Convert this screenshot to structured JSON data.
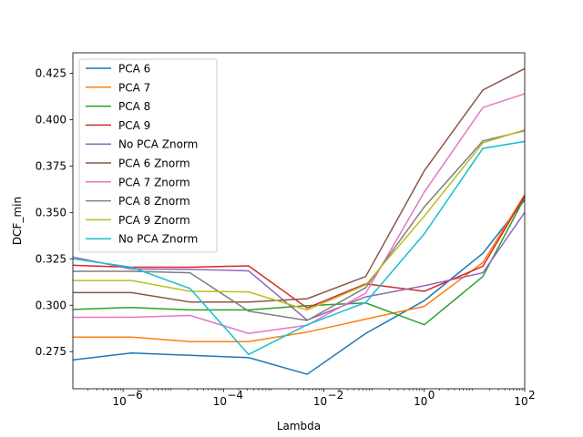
{
  "chart_data": {
    "type": "line",
    "xlabel": "Lambda",
    "ylabel": "DCF_min",
    "xscale": "log",
    "xlim": [
      1e-07,
      100.0
    ],
    "ylim": [
      0.255,
      0.436
    ],
    "x": [
      1e-07,
      1.4678e-06,
      2.1544e-05,
      0.00031623,
      0.0046416,
      0.068129,
      1.0,
      14.678,
      100
    ],
    "x_ticks": [
      1e-06,
      0.0001,
      0.01,
      1.0,
      100.0
    ],
    "x_tick_labels": [
      "10",
      "10",
      "10",
      "10",
      "10"
    ],
    "x_tick_exponents": [
      "−6",
      "−4",
      "−2",
      "0",
      "2"
    ],
    "y_ticks": [
      0.275,
      0.3,
      0.325,
      0.35,
      0.375,
      0.4,
      0.425
    ],
    "y_tick_labels": [
      "0.275",
      "0.300",
      "0.325",
      "0.350",
      "0.375",
      "0.400",
      "0.425"
    ],
    "legend_position": "upper-left",
    "grid": false,
    "series": [
      {
        "name": "PCA 6",
        "color": "#1f77b4",
        "values": [
          0.2705,
          0.2743,
          0.273,
          0.2718,
          0.2628,
          0.2848,
          0.3025,
          0.328,
          0.3567
        ]
      },
      {
        "name": "PCA 7",
        "color": "#ff7f0e",
        "values": [
          0.2828,
          0.2828,
          0.2804,
          0.2804,
          0.2855,
          0.2925,
          0.2994,
          0.323,
          0.3597
        ]
      },
      {
        "name": "PCA 8",
        "color": "#2ca02c",
        "values": [
          0.2977,
          0.2988,
          0.2975,
          0.2975,
          0.2998,
          0.3012,
          0.2895,
          0.3155,
          0.358
        ]
      },
      {
        "name": "PCA 9",
        "color": "#d62728",
        "values": [
          0.3215,
          0.3205,
          0.3205,
          0.3212,
          0.2985,
          0.3115,
          0.3075,
          0.321,
          0.359
        ]
      },
      {
        "name": "No PCA Znorm",
        "color": "#9467bd",
        "values": [
          0.326,
          0.3195,
          0.3193,
          0.3185,
          0.292,
          0.3045,
          0.3105,
          0.3175,
          0.35
        ]
      },
      {
        "name": "PCA 6 Znorm",
        "color": "#8c564b",
        "values": [
          0.3068,
          0.3068,
          0.3017,
          0.3017,
          0.3035,
          0.3155,
          0.3725,
          0.416,
          0.4275
        ]
      },
      {
        "name": "PCA 7 Znorm",
        "color": "#e377c2",
        "values": [
          0.2935,
          0.2935,
          0.2945,
          0.2848,
          0.2892,
          0.3065,
          0.361,
          0.4065,
          0.414
        ]
      },
      {
        "name": "PCA 8 Znorm",
        "color": "#7f7f7f",
        "values": [
          0.3183,
          0.3183,
          0.3175,
          0.2968,
          0.2918,
          0.3095,
          0.353,
          0.3885,
          0.394
        ]
      },
      {
        "name": "PCA 9 Znorm",
        "color": "#bcbd22",
        "values": [
          0.3133,
          0.3133,
          0.3075,
          0.3072,
          0.2975,
          0.311,
          0.348,
          0.3875,
          0.3945
        ]
      },
      {
        "name": "No PCA Znorm",
        "color": "#17becf",
        "values": [
          0.325,
          0.3205,
          0.309,
          0.2735,
          0.2895,
          0.3015,
          0.3385,
          0.3845,
          0.3882
        ]
      }
    ]
  }
}
